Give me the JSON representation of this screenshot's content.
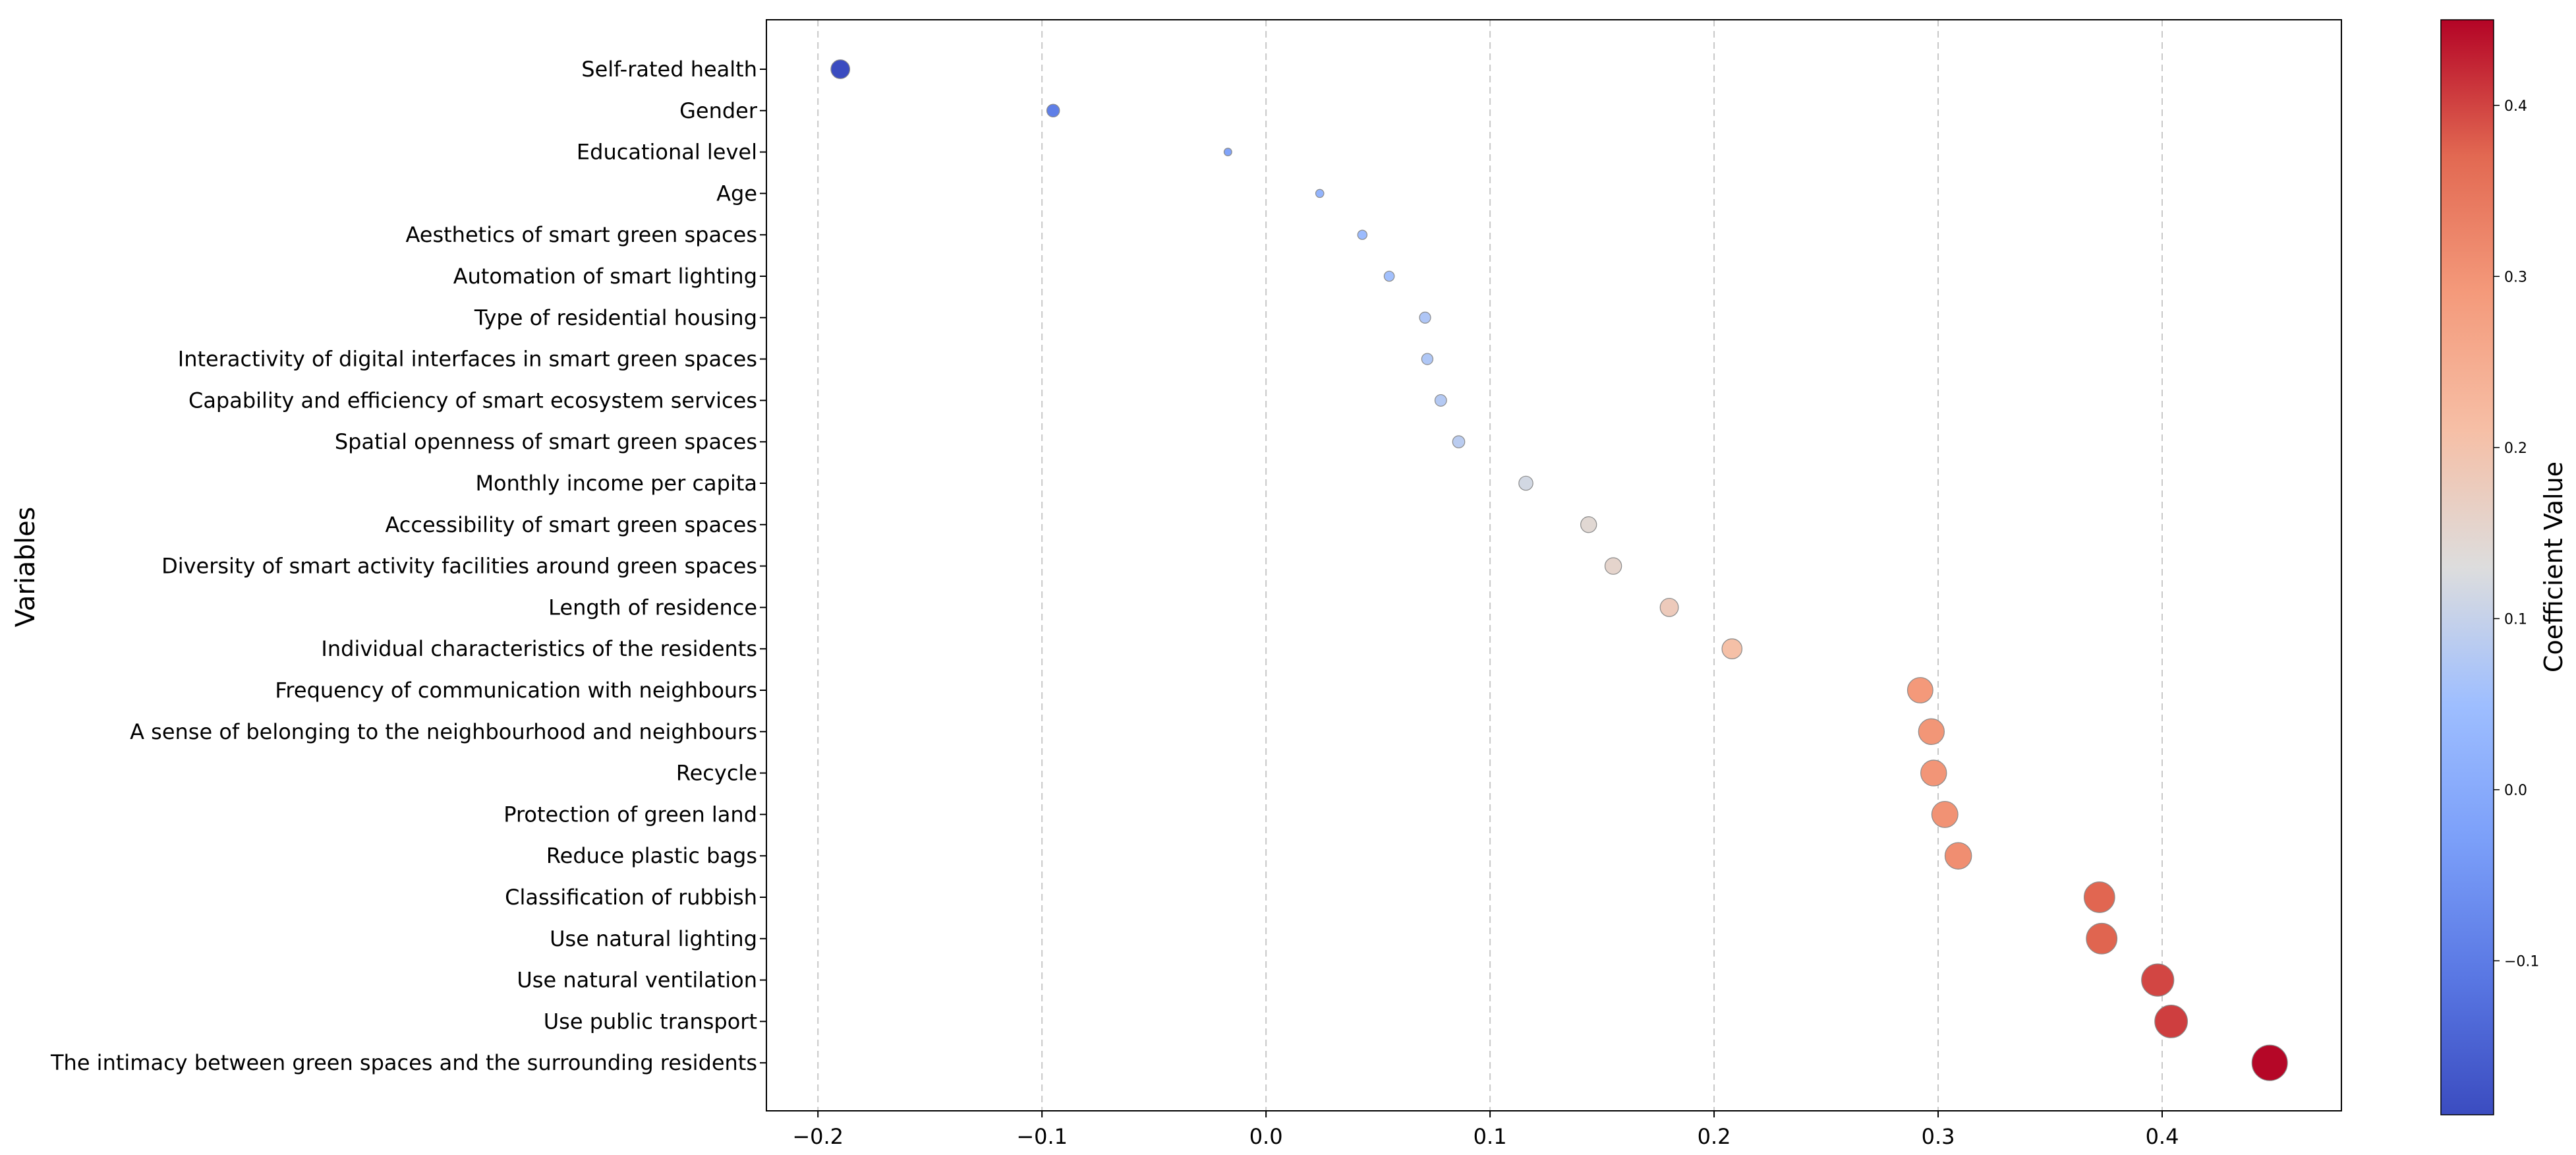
{
  "chart_data": {
    "type": "scatter",
    "title": "",
    "xlabel": "",
    "ylabel": "Variables",
    "xlim": [
      -0.223,
      0.48
    ],
    "x_ticks": [
      -0.2,
      -0.1,
      0.0,
      0.1,
      0.2,
      0.3,
      0.4
    ],
    "x_tick_labels": [
      "−0.2",
      "−0.1",
      "0.0",
      "0.1",
      "0.2",
      "0.3",
      "0.4"
    ],
    "grid": "vertical-dashed",
    "colorbar": {
      "label": "Coefficient Value",
      "range": [
        -0.19,
        0.45
      ],
      "ticks": [
        -0.1,
        0.0,
        0.1,
        0.2,
        0.3,
        0.4
      ],
      "tick_labels": [
        "−0.1",
        "0.0",
        "0.1",
        "0.2",
        "0.3",
        "0.4"
      ],
      "colormap": "coolwarm"
    },
    "categories": [
      "Self-rated health",
      "Gender",
      "Educational level",
      "Age",
      "Aesthetics of smart green spaces",
      "Automation of smart lighting",
      "Type of residential housing",
      "Interactivity of digital interfaces in smart green spaces",
      "Capability and efficiency of smart ecosystem services",
      "Spatial openness of smart green spaces",
      "Monthly income per capita",
      "Accessibility of smart green spaces",
      "Diversity of smart activity facilities around green spaces",
      "Length of residence",
      "Individual characteristics of the residents",
      "Frequency of communication with neighbours",
      "A sense of belonging to the neighbourhood and neighbours",
      "Recycle",
      "Protection of green land",
      "Reduce plastic bags",
      "Classification of rubbish",
      "Use natural lighting",
      "Use natural ventilation",
      "Use public transport",
      "The intimacy between green spaces and the surrounding residents"
    ],
    "values": [
      -0.19,
      -0.095,
      -0.017,
      0.024,
      0.043,
      0.055,
      0.071,
      0.072,
      0.078,
      0.086,
      0.116,
      0.144,
      0.155,
      0.18,
      0.208,
      0.292,
      0.297,
      0.298,
      0.303,
      0.309,
      0.372,
      0.373,
      0.398,
      0.404,
      0.448
    ]
  }
}
